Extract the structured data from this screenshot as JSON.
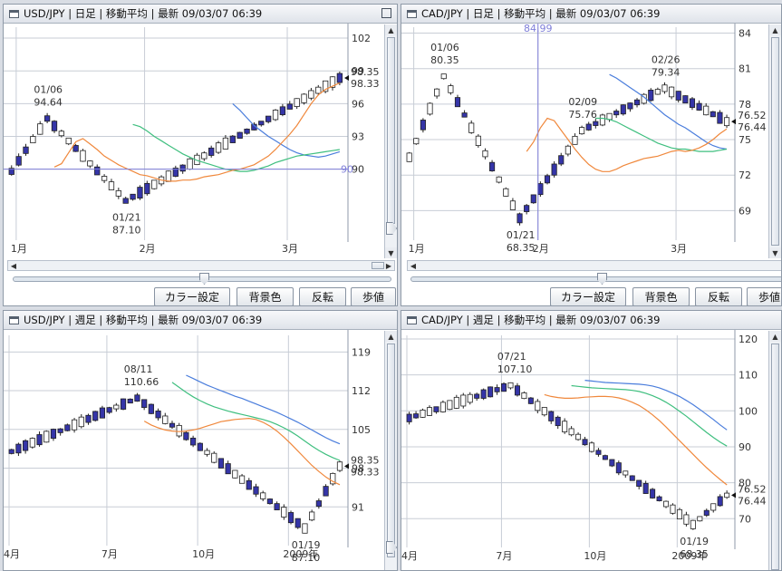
{
  "panels": [
    {
      "title": "USD/JPY | 日足 | 移動平均 | 最新 09/03/07 06:39",
      "buttons": [
        "カラー設定",
        "背景色",
        "反転",
        "歩値"
      ],
      "colors": {
        "up": "#ffffff",
        "down": "#3535a8",
        "ma_short": "#f0883c",
        "ma_mid": "#3fbf7f",
        "ma_long": "#4a7ddc",
        "grid": "#c8cdd6",
        "level": "#7f7fd9"
      },
      "chart_data": {
        "type": "candlestick",
        "y_ticks": [
          102,
          99,
          96,
          93,
          90
        ],
        "ylim": [
          83.5,
          103
        ],
        "x_ticks": [
          {
            "i": 1,
            "label": "1月"
          },
          {
            "i": 19,
            "label": "2月"
          },
          {
            "i": 39,
            "label": "3月"
          }
        ],
        "n": 47,
        "start": 89.8,
        "end": 98.35,
        "seed": 3,
        "lows_highs": [
          {
            "i": 5,
            "type": "high",
            "value": 94.64,
            "date": "01/06",
            "text_value": "94.64"
          },
          {
            "i": 16,
            "type": "low",
            "value": 87.1,
            "date": "01/21",
            "text_value": "87.10"
          }
        ],
        "last": {
          "top": "98.35",
          "bottom": "98.33"
        },
        "level": 90,
        "level_label": "90",
        "ma": {
          "short": [
            90.2,
            90.5,
            91.5,
            92.5,
            92.8,
            92.3,
            91.8,
            91.2,
            90.8,
            90.4,
            90.1,
            89.8,
            89.5,
            89.4,
            89.2,
            89.0,
            88.9,
            88.9,
            89.0,
            89.0,
            89.1,
            89.3,
            89.4,
            89.5,
            89.7,
            89.9,
            90.0,
            90.2,
            90.4,
            90.8,
            91.2,
            91.8,
            92.5,
            93.2,
            94.0,
            95.0,
            96.0,
            96.8,
            97.3,
            97.6,
            97.9
          ],
          "mid": [
            94.1,
            93.9,
            93.5,
            93.0,
            92.6,
            92.2,
            91.8,
            91.4,
            91.1,
            90.8,
            90.6,
            90.4,
            90.2,
            90.0,
            89.9,
            89.8,
            89.8,
            89.9,
            90.1,
            90.3,
            90.6,
            90.8,
            91.0,
            91.2,
            91.3,
            91.4,
            91.5,
            91.6,
            91.7,
            91.8
          ],
          "long": [
            96.0,
            95.4,
            94.7,
            94.0,
            93.5,
            93.0,
            92.6,
            92.2,
            91.8,
            91.5,
            91.3,
            91.2,
            91.1,
            91.2,
            91.4,
            91.6
          ]
        }
      }
    },
    {
      "title": "CAD/JPY | 日足 | 移動平均 | 最新 09/03/07 06:39",
      "buttons": [
        "カラー設定",
        "背景色",
        "反転",
        "歩値"
      ],
      "chart_data": {
        "type": "candlestick",
        "y_ticks": [
          84,
          81,
          78,
          75,
          72,
          69
        ],
        "ylim": [
          66.5,
          84.5
        ],
        "x_ticks": [
          {
            "i": 1,
            "label": "1月"
          },
          {
            "i": 19,
            "label": "2月"
          },
          {
            "i": 39,
            "label": "3月"
          }
        ],
        "n": 47,
        "start": 73.5,
        "end": 76.52,
        "seed": 11,
        "lows_highs": [
          {
            "i": 5,
            "type": "high",
            "value": 80.35,
            "date": "01/06",
            "text_value": "80.35"
          },
          {
            "i": 16,
            "type": "low",
            "value": 68.35,
            "date": "01/21",
            "text_value": "68.35"
          },
          {
            "i": 25,
            "type": "high",
            "value": 75.76,
            "date": "02/09",
            "text_value": "75.76"
          },
          {
            "i": 37,
            "type": "high",
            "value": 79.34,
            "date": "02/26",
            "text_value": "79.34"
          }
        ],
        "last": {
          "top": "76.52",
          "bottom": "76.44"
        },
        "partial_label": "84.99",
        "ma": {
          "short": [
            74.0,
            74.8,
            76.0,
            76.8,
            76.6,
            75.8,
            75.0,
            74.2,
            73.5,
            72.9,
            72.5,
            72.3,
            72.3,
            72.5,
            72.8,
            73.0,
            73.2,
            73.4,
            73.5,
            73.6,
            73.8,
            74.0,
            74.1,
            74.0,
            74.1,
            74.3,
            74.6,
            75.0,
            75.5,
            75.9
          ],
          "mid": [
            76.8,
            76.8,
            76.7,
            76.5,
            76.2,
            75.9,
            75.6,
            75.3,
            75.0,
            74.7,
            74.5,
            74.3,
            74.2,
            74.2,
            74.1,
            74.0,
            74.0,
            74.0,
            74.1,
            74.2
          ],
          "long": [
            80.5,
            80.2,
            79.8,
            79.4,
            79.0,
            78.6,
            78.1,
            77.6,
            77.1,
            76.7,
            76.3,
            76.0,
            75.6,
            75.2,
            74.8,
            74.5,
            74.3,
            74.2
          ]
        }
      }
    },
    {
      "title": "USD/JPY | 週足 | 移動平均 | 最新 09/03/07 06:39",
      "chart_data": {
        "type": "candlestick",
        "y_ticks": [
          119,
          112,
          105,
          98,
          91
        ],
        "ylim": [
          84,
          122
        ],
        "x_ticks": [
          {
            "i": 0,
            "label": "4月"
          },
          {
            "i": 14,
            "label": "7月"
          },
          {
            "i": 27,
            "label": "10月"
          },
          {
            "i": 40,
            "label": "2009年"
          }
        ],
        "n": 48,
        "start": 101,
        "end": 98.35,
        "seed": 21,
        "lows_highs": [
          {
            "i": 18,
            "type": "high",
            "value": 110.66,
            "date": "08/11",
            "text_value": "110.66"
          },
          {
            "i": 42,
            "type": "low",
            "value": 87.1,
            "date": "01/19",
            "text_value": "87.10"
          }
        ],
        "last": {
          "top": "98.35",
          "bottom": "98.33"
        },
        "ma": {
          "short": [
            106.5,
            105.8,
            105.3,
            104.9,
            104.7,
            104.6,
            104.7,
            104.9,
            105.2,
            105.6,
            106.0,
            106.4,
            106.6,
            106.8,
            106.9,
            107.0,
            106.8,
            106.3,
            105.6,
            104.7,
            103.6,
            102.4,
            101.1,
            99.8,
            98.5,
            97.4,
            96.4,
            95.6,
            95.0
          ],
          "mid": [
            113.5,
            112.6,
            111.7,
            110.9,
            110.2,
            109.6,
            109.1,
            108.7,
            108.3,
            108.0,
            107.7,
            107.4,
            107.1,
            106.8,
            106.4,
            105.9,
            105.3,
            104.6,
            103.8,
            102.9,
            102.0,
            101.2,
            100.5,
            99.9,
            99.4
          ],
          "long": [
            114.8,
            114.2,
            113.6,
            113.0,
            112.5,
            112.0,
            111.5,
            111.0,
            110.6,
            110.1,
            109.6,
            109.1,
            108.6,
            108.1,
            107.5,
            106.9,
            106.3,
            105.6,
            104.9,
            104.2,
            103.5,
            102.9,
            102.4
          ]
        }
      }
    },
    {
      "title": "CAD/JPY | 週足 | 移動平均 | 最新 09/03/07 06:39",
      "chart_data": {
        "type": "candlestick",
        "y_ticks": [
          120,
          110,
          100,
          90,
          80,
          70
        ],
        "ylim": [
          62,
          121
        ],
        "x_ticks": [
          {
            "i": 0,
            "label": "4月"
          },
          {
            "i": 14,
            "label": "7月"
          },
          {
            "i": 27,
            "label": "10月"
          },
          {
            "i": 40,
            "label": "2009年"
          }
        ],
        "n": 48,
        "start": 98,
        "end": 76.52,
        "seed": 33,
        "lows_highs": [
          {
            "i": 15,
            "type": "high",
            "value": 107.1,
            "date": "07/21",
            "text_value": "107.10"
          },
          {
            "i": 42,
            "type": "low",
            "value": 68.35,
            "date": "01/19",
            "text_value": "68.35"
          }
        ],
        "last": {
          "top": "76.52",
          "bottom": "76.44"
        },
        "ma": {
          "short": [
            104.5,
            104.0,
            103.7,
            103.5,
            103.5,
            103.6,
            103.8,
            103.9,
            104.0,
            104.0,
            103.9,
            103.6,
            103.1,
            102.4,
            101.5,
            100.3,
            98.9,
            97.3,
            95.5,
            93.6,
            91.7,
            89.8,
            87.9,
            86.0,
            84.2,
            82.5,
            80.9,
            79.4
          ],
          "mid": [
            107.0,
            106.8,
            106.6,
            106.4,
            106.3,
            106.2,
            106.1,
            106.0,
            105.9,
            105.7,
            105.4,
            104.9,
            104.2,
            103.4,
            102.4,
            101.2,
            99.9,
            98.5,
            97.0,
            95.5,
            94.0,
            92.6,
            91.3,
            90.2
          ],
          "long": [
            108.5,
            108.3,
            108.1,
            107.9,
            107.8,
            107.7,
            107.6,
            107.5,
            107.4,
            107.2,
            106.9,
            106.4,
            105.7,
            104.9,
            104.0,
            102.9,
            101.7,
            100.4,
            99.0,
            97.6,
            96.1,
            94.7
          ]
        }
      }
    }
  ]
}
